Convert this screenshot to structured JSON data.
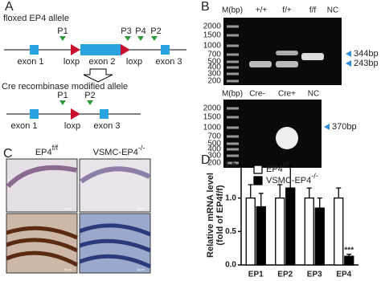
{
  "panel_a": {
    "label": "A",
    "title1": "floxed EP4 allele",
    "primers1": [
      "P1",
      "P3",
      "P4",
      "P2"
    ],
    "parts1": [
      "exon 1",
      "loxp",
      "exon 2",
      "loxp",
      "exon 3"
    ],
    "title2": "Cre recombinase modified allele",
    "primers2": [
      "P1",
      "P2"
    ],
    "parts2": [
      "exon 1",
      "loxp",
      "exon 3"
    ]
  },
  "panel_b": {
    "label": "B",
    "gel1": {
      "lanes": [
        "M(bp)",
        "+/+",
        "f/+",
        "f/f",
        "NC"
      ],
      "markers": [
        2000,
        1500,
        1000,
        700,
        500,
        400,
        300,
        200
      ],
      "bands": [
        "344bp",
        "243bp"
      ]
    },
    "gel2": {
      "lanes": [
        "M(bp)",
        "Cre-",
        "Cre+",
        "NC"
      ],
      "markers": [
        2000,
        1500,
        1000,
        700,
        500,
        400,
        300,
        200
      ],
      "bands": [
        "370bp"
      ]
    }
  },
  "panel_c": {
    "label": "C",
    "columns": [
      {
        "name": "EP4",
        "sup": "f/f"
      },
      {
        "name": "VSMC-EP4",
        "sup": "-/-"
      }
    ],
    "scale_bars": [
      "10μm",
      "10μm",
      "10μm",
      "10μm"
    ]
  },
  "chart_data": {
    "type": "bar",
    "panel_label": "D",
    "y_label": [
      "Relative mRNA level",
      "(fold of EP4f/f)"
    ],
    "categories": [
      "EP1",
      "EP2",
      "EP3",
      "EP4"
    ],
    "series": [
      {
        "name": "EP4",
        "sup": "f/f",
        "color": "#ffffff",
        "values": [
          1.0,
          1.0,
          1.0,
          1.0
        ],
        "errors": [
          0.2,
          0.2,
          0.15,
          0.15
        ]
      },
      {
        "name": "VSMC-EP4",
        "sup": "-/-",
        "color": "#000000",
        "values": [
          0.87,
          1.15,
          0.85,
          0.13
        ],
        "errors": [
          0.2,
          0.35,
          0.15,
          0.03
        ]
      }
    ],
    "annotation": "***",
    "ylim": [
      0,
      1.5
    ],
    "yticks": [
      {
        "value": 0,
        "label": "0.0"
      },
      0.5,
      {
        "value": 1,
        "label": "1.0"
      },
      1.5
    ]
  }
}
